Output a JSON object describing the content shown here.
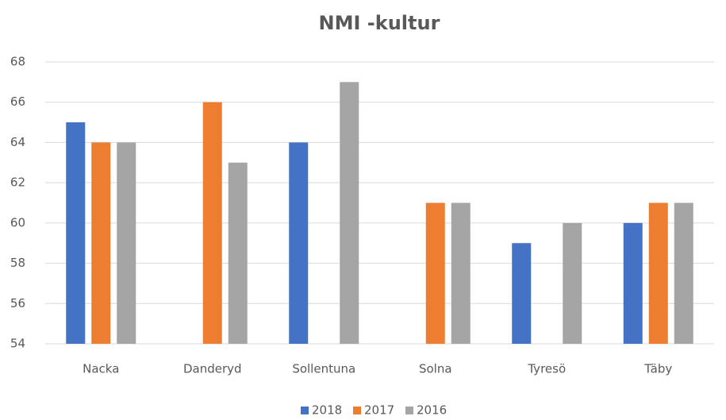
{
  "chart_data": {
    "type": "bar",
    "title": "NMI -kultur",
    "categories": [
      "Nacka",
      "Danderyd",
      "Sollentuna",
      "Solna",
      "Tyresö",
      "Täby"
    ],
    "series": [
      {
        "name": "2018",
        "color": "#4472c4",
        "values": [
          65,
          null,
          64,
          null,
          59,
          60
        ]
      },
      {
        "name": "2017",
        "color": "#ed7d31",
        "values": [
          64,
          66,
          null,
          61,
          null,
          61
        ]
      },
      {
        "name": "2016",
        "color": "#a5a5a5",
        "values": [
          64,
          63,
          67,
          61,
          60,
          61
        ]
      }
    ],
    "ylim": [
      54,
      68
    ],
    "yticks": [
      54,
      56,
      58,
      60,
      62,
      64,
      66,
      68
    ],
    "grid": true,
    "legend": "bottom"
  }
}
